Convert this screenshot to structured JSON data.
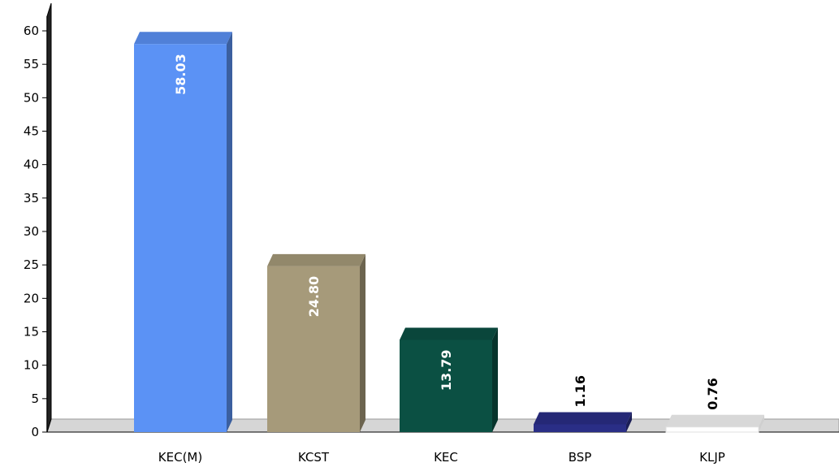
{
  "chart_data": {
    "type": "bar",
    "categories": [
      "KEC(M)",
      "KCST",
      "KEC",
      "BSP",
      "KLJP"
    ],
    "values": [
      58.03,
      24.8,
      13.79,
      1.16,
      0.76
    ],
    "data_labels": [
      "58.03",
      "24.80",
      "13.79",
      "1.16",
      "0.76"
    ],
    "colors": [
      "#5b92f5",
      "#a69a7a",
      "#0b5043",
      "#2a2e86",
      "#ffffff"
    ],
    "ylim": [
      0,
      60
    ],
    "yticks": [
      0,
      5,
      10,
      15,
      20,
      25,
      30,
      35,
      40,
      45,
      50,
      55,
      60
    ],
    "title": "",
    "xlabel": "",
    "ylabel": "",
    "grid": false,
    "legend": "none"
  }
}
